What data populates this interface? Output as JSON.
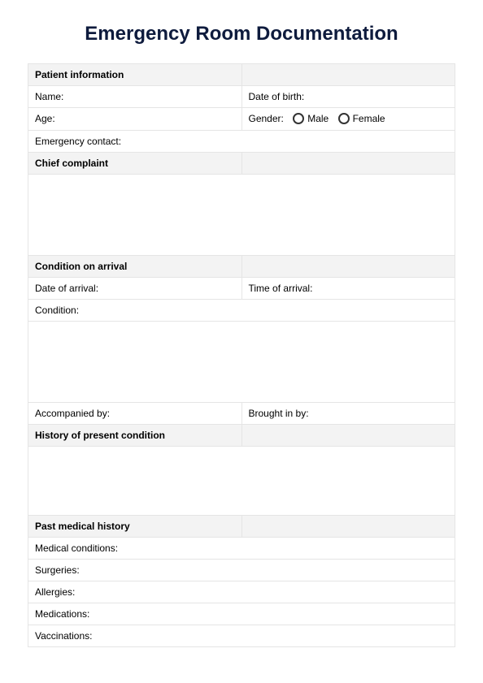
{
  "title": "Emergency Room Documentation",
  "title_color": "#0e1b3d",
  "sections": {
    "patient_info": {
      "header": "Patient information",
      "name": "Name:",
      "dob": "Date of birth:",
      "age": "Age:",
      "gender_label": "Gender:",
      "male": "Male",
      "female": "Female",
      "emergency_contact": "Emergency contact:"
    },
    "chief_complaint": {
      "header": "Chief complaint"
    },
    "condition_arrival": {
      "header": "Condition on arrival",
      "date_arrival": "Date of arrival:",
      "time_arrival": "Time of arrival:",
      "condition": "Condition:",
      "accompanied_by": "Accompanied by:",
      "brought_in_by": "Brought in by:"
    },
    "history_present": {
      "header": "History of present condition"
    },
    "past_medical": {
      "header": "Past medical history",
      "medical_conditions": "Medical conditions:",
      "surgeries": "Surgeries:",
      "allergies": "Allergies:",
      "medications": "Medications:",
      "vaccinations": "Vaccinations:"
    }
  },
  "styling": {
    "section_bg": "#f3f3f3",
    "border_color": "#e5e5e5",
    "page_bg": "#ffffff",
    "body_font_size": 12,
    "title_font_size": 24
  }
}
